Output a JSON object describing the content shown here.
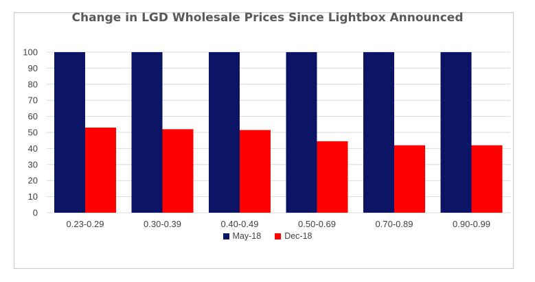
{
  "chart_data": {
    "type": "bar",
    "title": "Change in LGD Wholesale Prices Since Lightbox Announced",
    "categories": [
      "0.23-0.29",
      "0.30-0.39",
      "0.40-0.49",
      "0.50-0.69",
      "0.70-0.89",
      "0.90-0.99"
    ],
    "series": [
      {
        "name": "May-18",
        "color": "#0c1466",
        "values": [
          100,
          100,
          100,
          100,
          100,
          100
        ]
      },
      {
        "name": "Dec-18",
        "color": "#ff0000",
        "values": [
          53,
          52,
          51.5,
          44.5,
          42,
          42
        ]
      }
    ],
    "ylim": [
      0,
      100
    ],
    "yticks": [
      0,
      10,
      20,
      30,
      40,
      50,
      60,
      70,
      80,
      90,
      100
    ],
    "grid": true,
    "legend": "bottom"
  }
}
